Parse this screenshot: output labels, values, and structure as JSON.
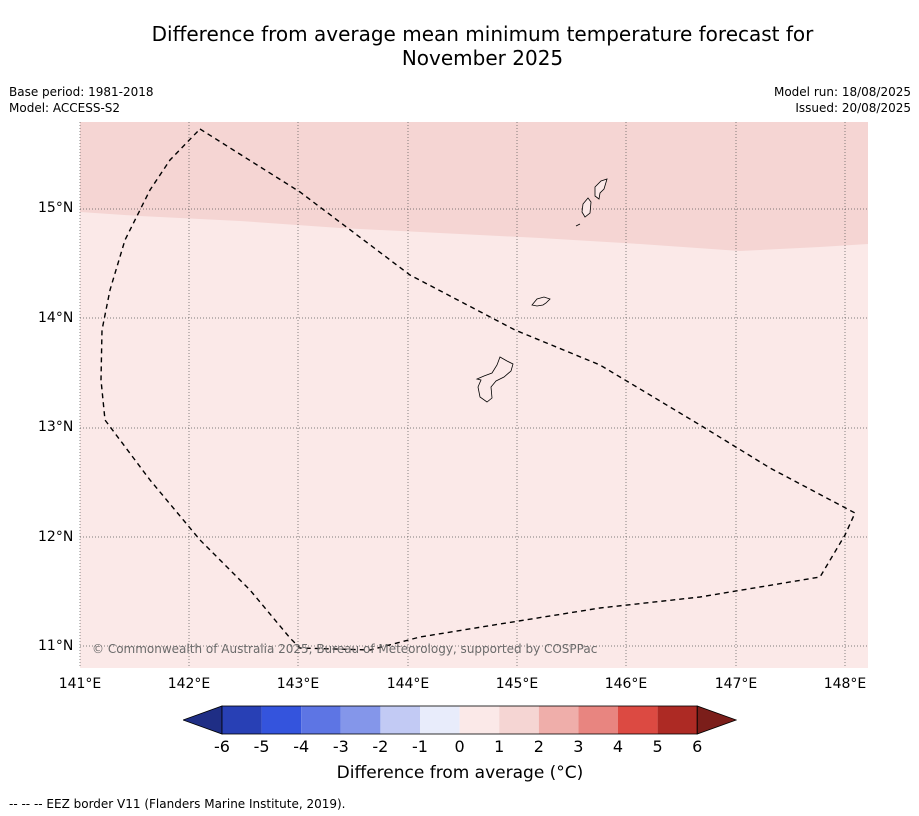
{
  "title_line1": "Difference from average mean minimum temperature forecast for",
  "title_line2": "November 2025",
  "base_period": "Base period: 1981-2018",
  "model": "Model: ACCESS-S2",
  "model_run": "Model run: 18/08/2025",
  "issued": "Issued: 20/08/2025",
  "copyright": "© Commonwealth of Australia 2025, Bureau of Meteorology, supported by COSPPac",
  "lat_labels": [
    "15°N",
    "14°N",
    "13°N",
    "12°N",
    "11°N"
  ],
  "lon_labels": [
    "141°E",
    "142°E",
    "143°E",
    "144°E",
    "145°E",
    "146°E",
    "147°E",
    "148°E"
  ],
  "colorbar": {
    "ticks": [
      "-6",
      "-5",
      "-4",
      "-3",
      "-2",
      "-1",
      "0",
      "1",
      "2",
      "3",
      "4",
      "5",
      "6"
    ],
    "colors": [
      "#1f2e85",
      "#2840b5",
      "#3454dd",
      "#5d75e4",
      "#8496ea",
      "#c2caf4",
      "#e8ecfb",
      "#fbe9e8",
      "#f5d5d3",
      "#efaeaa",
      "#e88580",
      "#dc4a42",
      "#ad2a24",
      "#7b1e1a"
    ],
    "label": "Difference from average (°C)"
  },
  "footer": "--  --  -- EEZ border V11 (Flanders Marine Institute, 2019).",
  "colors": {
    "anomaly_0_1": "#fbe9e8",
    "anomaly_1_2": "#f5d5d3"
  }
}
